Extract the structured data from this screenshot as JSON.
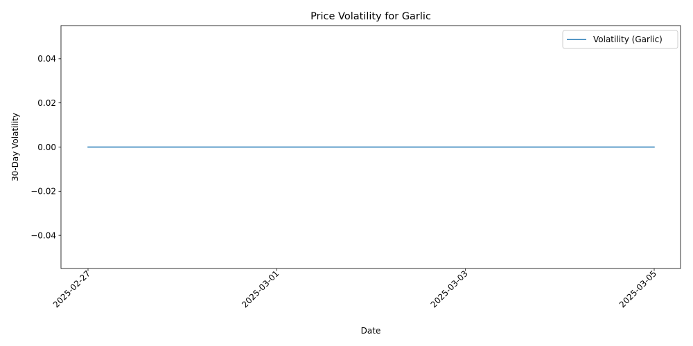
{
  "chart_data": {
    "type": "line",
    "title": "Price Volatility for Garlic",
    "xlabel": "Date",
    "ylabel": "30-Day Volatility",
    "x_ticks": [
      "2025-02-27",
      "2025-03-01",
      "2025-03-03",
      "2025-03-05"
    ],
    "y_ticks": [
      "−0.04",
      "−0.02",
      "0.00",
      "0.02",
      "0.04"
    ],
    "y_tick_values": [
      -0.04,
      -0.02,
      0.0,
      0.02,
      0.04
    ],
    "ylim": [
      -0.055,
      0.055
    ],
    "xlim": [
      "2025-02-26",
      "2025-03-05"
    ],
    "grid": false,
    "legend_position": "top-right",
    "series": [
      {
        "name": "Volatility (Garlic)",
        "color": "#1f77b4",
        "x": [
          "2025-02-27",
          "2025-02-28",
          "2025-03-01",
          "2025-03-02",
          "2025-03-03",
          "2025-03-04",
          "2025-03-05"
        ],
        "values": [
          0,
          0,
          0,
          0,
          0,
          0,
          0
        ]
      }
    ]
  }
}
